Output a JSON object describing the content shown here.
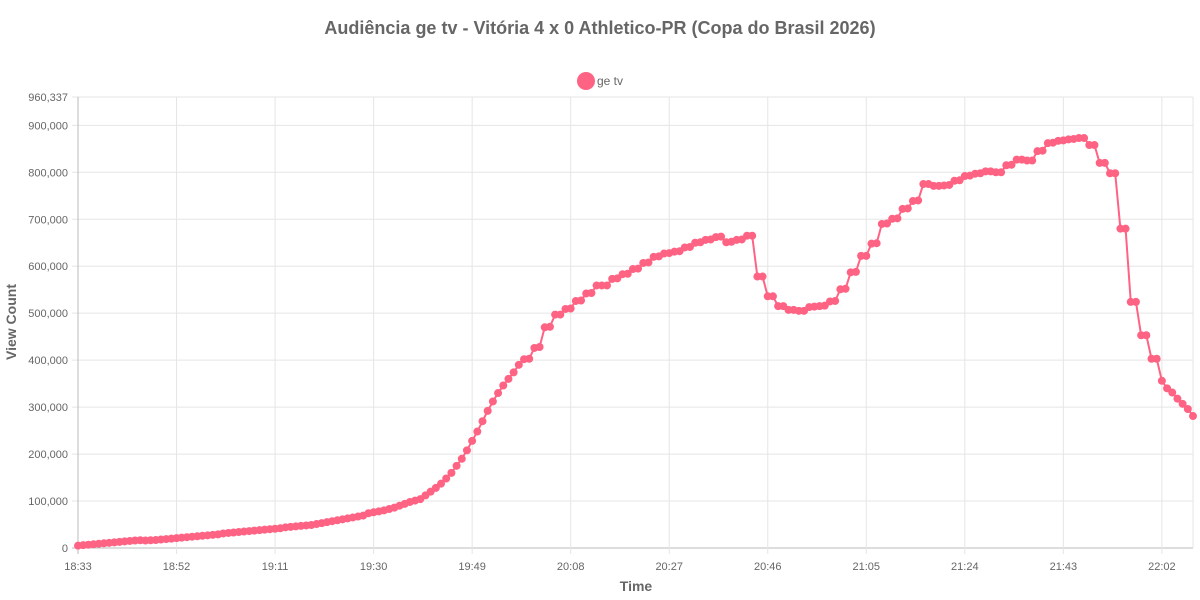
{
  "chart_data": {
    "type": "line",
    "title": "Audiência ge tv - Vitória 4 x 0 Athletico-PR (Copa do Brasil 2026)",
    "xlabel": "Time",
    "ylabel": "View Count",
    "x_ticks": [
      "18:33",
      "18:52",
      "19:11",
      "19:30",
      "19:49",
      "20:08",
      "20:27",
      "20:46",
      "21:05",
      "21:24",
      "21:43",
      "22:02"
    ],
    "y_ticks": [
      "0",
      "100,000",
      "200,000",
      "300,000",
      "400,000",
      "500,000",
      "600,000",
      "700,000",
      "800,000",
      "900,000",
      "960,337"
    ],
    "ylim": [
      0,
      960337
    ],
    "grid": true,
    "legend_position": "top",
    "color": "#ff6384",
    "series": [
      {
        "name": "ge tv",
        "values": [
          [
            0,
            5000
          ],
          [
            1,
            6000
          ],
          [
            2,
            7000
          ],
          [
            3,
            8000
          ],
          [
            4,
            9000
          ],
          [
            5,
            10000
          ],
          [
            6,
            11000
          ],
          [
            7,
            12000
          ],
          [
            8,
            13000
          ],
          [
            9,
            14000
          ],
          [
            10,
            15000
          ],
          [
            11,
            16000
          ],
          [
            12,
            16500
          ],
          [
            13,
            16000
          ],
          [
            14,
            16500
          ],
          [
            15,
            17000
          ],
          [
            16,
            18000
          ],
          [
            17,
            19000
          ],
          [
            18,
            20000
          ],
          [
            19,
            21000
          ],
          [
            20,
            22000
          ],
          [
            21,
            23000
          ],
          [
            22,
            24000
          ],
          [
            23,
            25000
          ],
          [
            24,
            26000
          ],
          [
            25,
            27000
          ],
          [
            26,
            28000
          ],
          [
            27,
            29000
          ],
          [
            28,
            31000
          ],
          [
            29,
            32000
          ],
          [
            30,
            33000
          ],
          [
            31,
            34000
          ],
          [
            32,
            35000
          ],
          [
            33,
            36000
          ],
          [
            34,
            37000
          ],
          [
            35,
            38000
          ],
          [
            36,
            39000
          ],
          [
            37,
            40000
          ],
          [
            38,
            41000
          ],
          [
            39,
            42000
          ],
          [
            40,
            44000
          ],
          [
            41,
            45000
          ],
          [
            42,
            46000
          ],
          [
            43,
            47000
          ],
          [
            44,
            48000
          ],
          [
            45,
            49000
          ],
          [
            46,
            51000
          ],
          [
            47,
            53000
          ],
          [
            48,
            55000
          ],
          [
            49,
            57000
          ],
          [
            50,
            59000
          ],
          [
            51,
            61000
          ],
          [
            52,
            63000
          ],
          [
            53,
            65000
          ],
          [
            54,
            67000
          ],
          [
            55,
            69000
          ],
          [
            56,
            74000
          ],
          [
            57,
            76000
          ],
          [
            58,
            78000
          ],
          [
            59,
            80000
          ],
          [
            60,
            83000
          ],
          [
            61,
            86000
          ],
          [
            62,
            90000
          ],
          [
            63,
            94000
          ],
          [
            64,
            98000
          ],
          [
            65,
            101000
          ],
          [
            66,
            104000
          ],
          [
            67,
            112000
          ],
          [
            68,
            120000
          ],
          [
            69,
            128000
          ],
          [
            70,
            137000
          ],
          [
            71,
            148000
          ],
          [
            72,
            160000
          ],
          [
            73,
            175000
          ],
          [
            74,
            190000
          ],
          [
            75,
            208000
          ],
          [
            76,
            228000
          ],
          [
            77,
            248000
          ],
          [
            78,
            270000
          ],
          [
            79,
            292000
          ],
          [
            80,
            312000
          ],
          [
            81,
            330000
          ],
          [
            82,
            346000
          ],
          [
            83,
            360000
          ],
          [
            84,
            374000
          ],
          [
            85,
            390000
          ],
          [
            86,
            402000
          ],
          [
            87,
            403000
          ],
          [
            88,
            426000
          ],
          [
            89,
            428000
          ],
          [
            90,
            470000
          ],
          [
            91,
            471000
          ],
          [
            92,
            497000
          ],
          [
            93,
            497000
          ],
          [
            94,
            509000
          ],
          [
            95,
            510000
          ],
          [
            96,
            526000
          ],
          [
            97,
            527000
          ],
          [
            98,
            542000
          ],
          [
            99,
            543000
          ],
          [
            100,
            559000
          ],
          [
            101,
            559000
          ],
          [
            102,
            559000
          ],
          [
            103,
            573000
          ],
          [
            104,
            574000
          ],
          [
            105,
            583000
          ],
          [
            106,
            584000
          ],
          [
            107,
            594000
          ],
          [
            108,
            595000
          ],
          [
            109,
            607000
          ],
          [
            110,
            608000
          ],
          [
            111,
            620000
          ],
          [
            112,
            621000
          ],
          [
            113,
            627000
          ],
          [
            114,
            628000
          ],
          [
            115,
            631000
          ],
          [
            116,
            632000
          ],
          [
            117,
            640000
          ],
          [
            118,
            641000
          ],
          [
            119,
            650000
          ],
          [
            120,
            651000
          ],
          [
            121,
            656000
          ],
          [
            122,
            657000
          ],
          [
            123,
            662000
          ],
          [
            124,
            663000
          ],
          [
            125,
            651000
          ],
          [
            126,
            652000
          ],
          [
            127,
            656000
          ],
          [
            128,
            657000
          ],
          [
            129,
            665000
          ],
          [
            130,
            665000
          ],
          [
            131,
            578000
          ],
          [
            132,
            578000
          ],
          [
            133,
            536000
          ],
          [
            134,
            536000
          ],
          [
            135,
            515000
          ],
          [
            136,
            515000
          ],
          [
            137,
            507000
          ],
          [
            138,
            507000
          ],
          [
            139,
            505000
          ],
          [
            140,
            505000
          ],
          [
            141,
            513000
          ],
          [
            142,
            514000
          ],
          [
            143,
            515000
          ],
          [
            144,
            516000
          ],
          [
            145,
            525000
          ],
          [
            146,
            526000
          ],
          [
            147,
            551000
          ],
          [
            148,
            552000
          ],
          [
            149,
            587000
          ],
          [
            150,
            588000
          ],
          [
            151,
            622000
          ],
          [
            152,
            622000
          ],
          [
            153,
            648000
          ],
          [
            154,
            649000
          ],
          [
            155,
            690000
          ],
          [
            156,
            691000
          ],
          [
            157,
            701000
          ],
          [
            158,
            702000
          ],
          [
            159,
            722000
          ],
          [
            160,
            723000
          ],
          [
            161,
            739000
          ],
          [
            162,
            740000
          ],
          [
            163,
            775000
          ],
          [
            164,
            775000
          ],
          [
            165,
            771000
          ],
          [
            166,
            771000
          ],
          [
            167,
            772000
          ],
          [
            168,
            773000
          ],
          [
            169,
            782000
          ],
          [
            170,
            783000
          ],
          [
            171,
            792000
          ],
          [
            172,
            793000
          ],
          [
            173,
            797000
          ],
          [
            174,
            798000
          ],
          [
            175,
            802000
          ],
          [
            176,
            802000
          ],
          [
            177,
            800000
          ],
          [
            178,
            800000
          ],
          [
            179,
            815000
          ],
          [
            180,
            816000
          ],
          [
            181,
            827000
          ],
          [
            182,
            827000
          ],
          [
            183,
            825000
          ],
          [
            184,
            825000
          ],
          [
            185,
            845000
          ],
          [
            186,
            846000
          ],
          [
            187,
            862000
          ],
          [
            188,
            863000
          ],
          [
            189,
            867000
          ],
          [
            190,
            868000
          ],
          [
            191,
            870000
          ],
          [
            192,
            871000
          ],
          [
            193,
            873000
          ],
          [
            194,
            873000
          ],
          [
            195,
            858000
          ],
          [
            196,
            858000
          ],
          [
            197,
            820000
          ],
          [
            198,
            820000
          ],
          [
            199,
            798000
          ],
          [
            200,
            798000
          ],
          [
            201,
            680000
          ],
          [
            202,
            680000
          ],
          [
            203,
            524000
          ],
          [
            204,
            524000
          ],
          [
            205,
            453000
          ],
          [
            206,
            453000
          ],
          [
            207,
            403000
          ],
          [
            208,
            403000
          ],
          [
            209,
            356000
          ],
          [
            210,
            340000
          ],
          [
            211,
            331000
          ],
          [
            212,
            318000
          ],
          [
            213,
            307000
          ],
          [
            214,
            296000
          ],
          [
            215,
            281000
          ]
        ]
      }
    ]
  }
}
